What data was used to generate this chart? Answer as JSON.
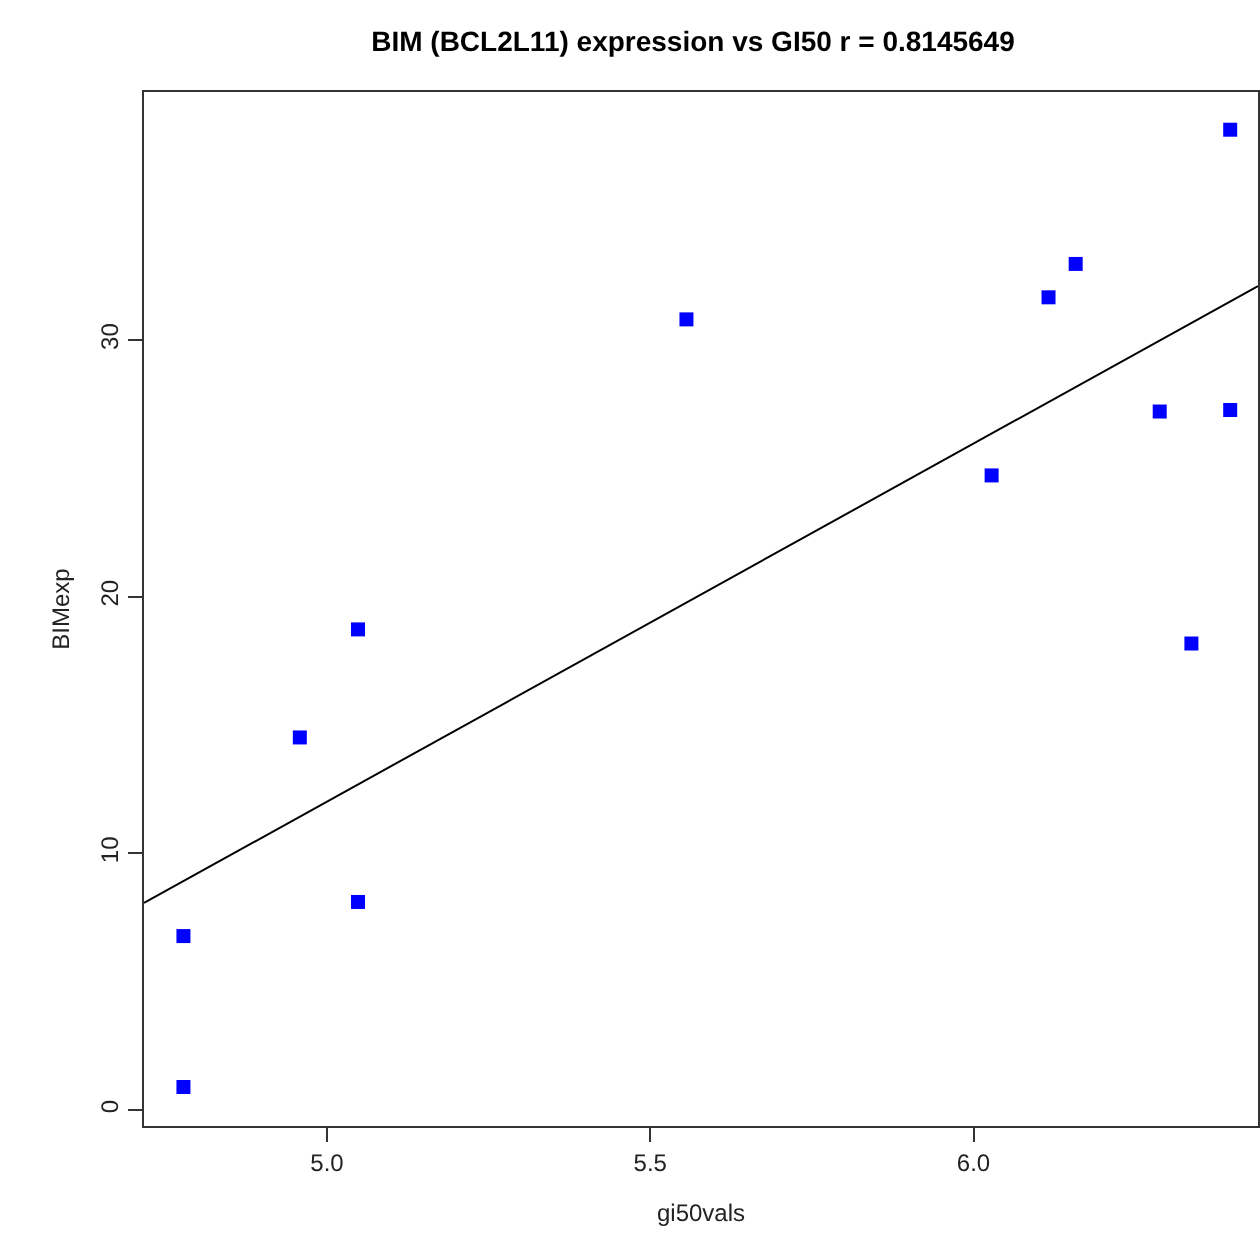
{
  "chart_data": {
    "type": "scatter",
    "title": "BIM (BCL2L11) expression vs GI50 r = 0.8145649",
    "xlabel": "gi50vals",
    "ylabel": "BIMexp",
    "xlim": [
      4.717,
      6.44
    ],
    "xticks": [
      {
        "value": 5.0,
        "label": "5.0"
      },
      {
        "value": 5.5,
        "label": "5.5"
      },
      {
        "value": 6.0,
        "label": "6.0"
      }
    ],
    "ylim": [
      -0.62,
      39.67
    ],
    "yticks": [
      0,
      10,
      20,
      30
    ],
    "marker": "square",
    "series": [
      {
        "color": "#0000ff",
        "x": [
          4.778,
          4.778,
          4.958,
          5.048,
          5.048,
          5.556,
          6.028,
          6.116,
          6.158,
          6.288,
          6.337,
          6.397,
          6.397
        ],
        "values": [
          0.9,
          6.78,
          14.52,
          8.11,
          18.73,
          30.81,
          24.73,
          31.67,
          32.97,
          27.22,
          18.18,
          27.28,
          38.2
        ]
      },
      {
        "type": "line",
        "color": "#000000",
        "line_style": "solid",
        "marker": "none",
        "x": [
          4.717,
          6.44
        ],
        "values": [
          8.07,
          32.11
        ]
      }
    ]
  }
}
